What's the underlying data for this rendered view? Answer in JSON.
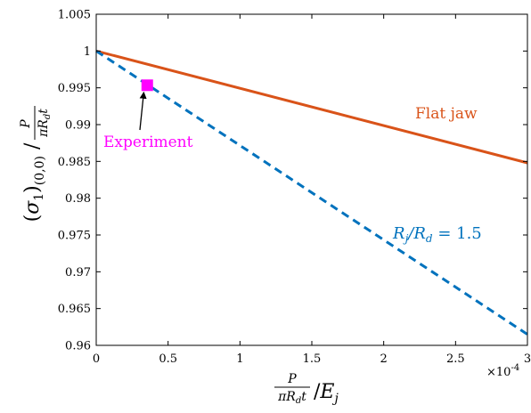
{
  "chart_data": {
    "type": "line",
    "title": "",
    "xlim": [
      0,
      0.0003
    ],
    "ylim": [
      0.96,
      1.005
    ],
    "x_multiplier_label": "×10",
    "x_multiplier_exponent": "-4",
    "x_tick_values": [
      0,
      5e-05,
      0.0001,
      0.00015,
      0.0002,
      0.00025,
      0.0003
    ],
    "x_tick_labels": [
      "0",
      "0.5",
      "1",
      "1.5",
      "2",
      "2.5",
      "3"
    ],
    "y_tick_values": [
      0.96,
      0.965,
      0.97,
      0.975,
      0.98,
      0.985,
      0.99,
      0.995,
      1.0,
      1.005
    ],
    "y_tick_labels": [
      "0.96",
      "0.965",
      "0.97",
      "0.975",
      "0.98",
      "0.985",
      "0.99",
      "0.995",
      "1",
      "1.005"
    ],
    "grid": false,
    "series": [
      {
        "name": "Flat jaw",
        "style": "solid",
        "color": "#d95319",
        "x": [
          0,
          0.0003
        ],
        "y": [
          1.0,
          0.9848
        ]
      },
      {
        "name": "R_j/R_d = 1.5",
        "style": "dashed",
        "color": "#0072bd",
        "x": [
          0,
          0.0003
        ],
        "y": [
          1.0,
          0.9615
        ]
      }
    ],
    "points": [
      {
        "name": "Experiment",
        "x": 3.55e-05,
        "y": 0.99535,
        "color": "#ff00ff",
        "marker": "square"
      }
    ],
    "annotations": {
      "flat_jaw": "Flat jaw",
      "experiment": "Experiment",
      "ratio": "R_j/R_d = 1.5"
    }
  }
}
